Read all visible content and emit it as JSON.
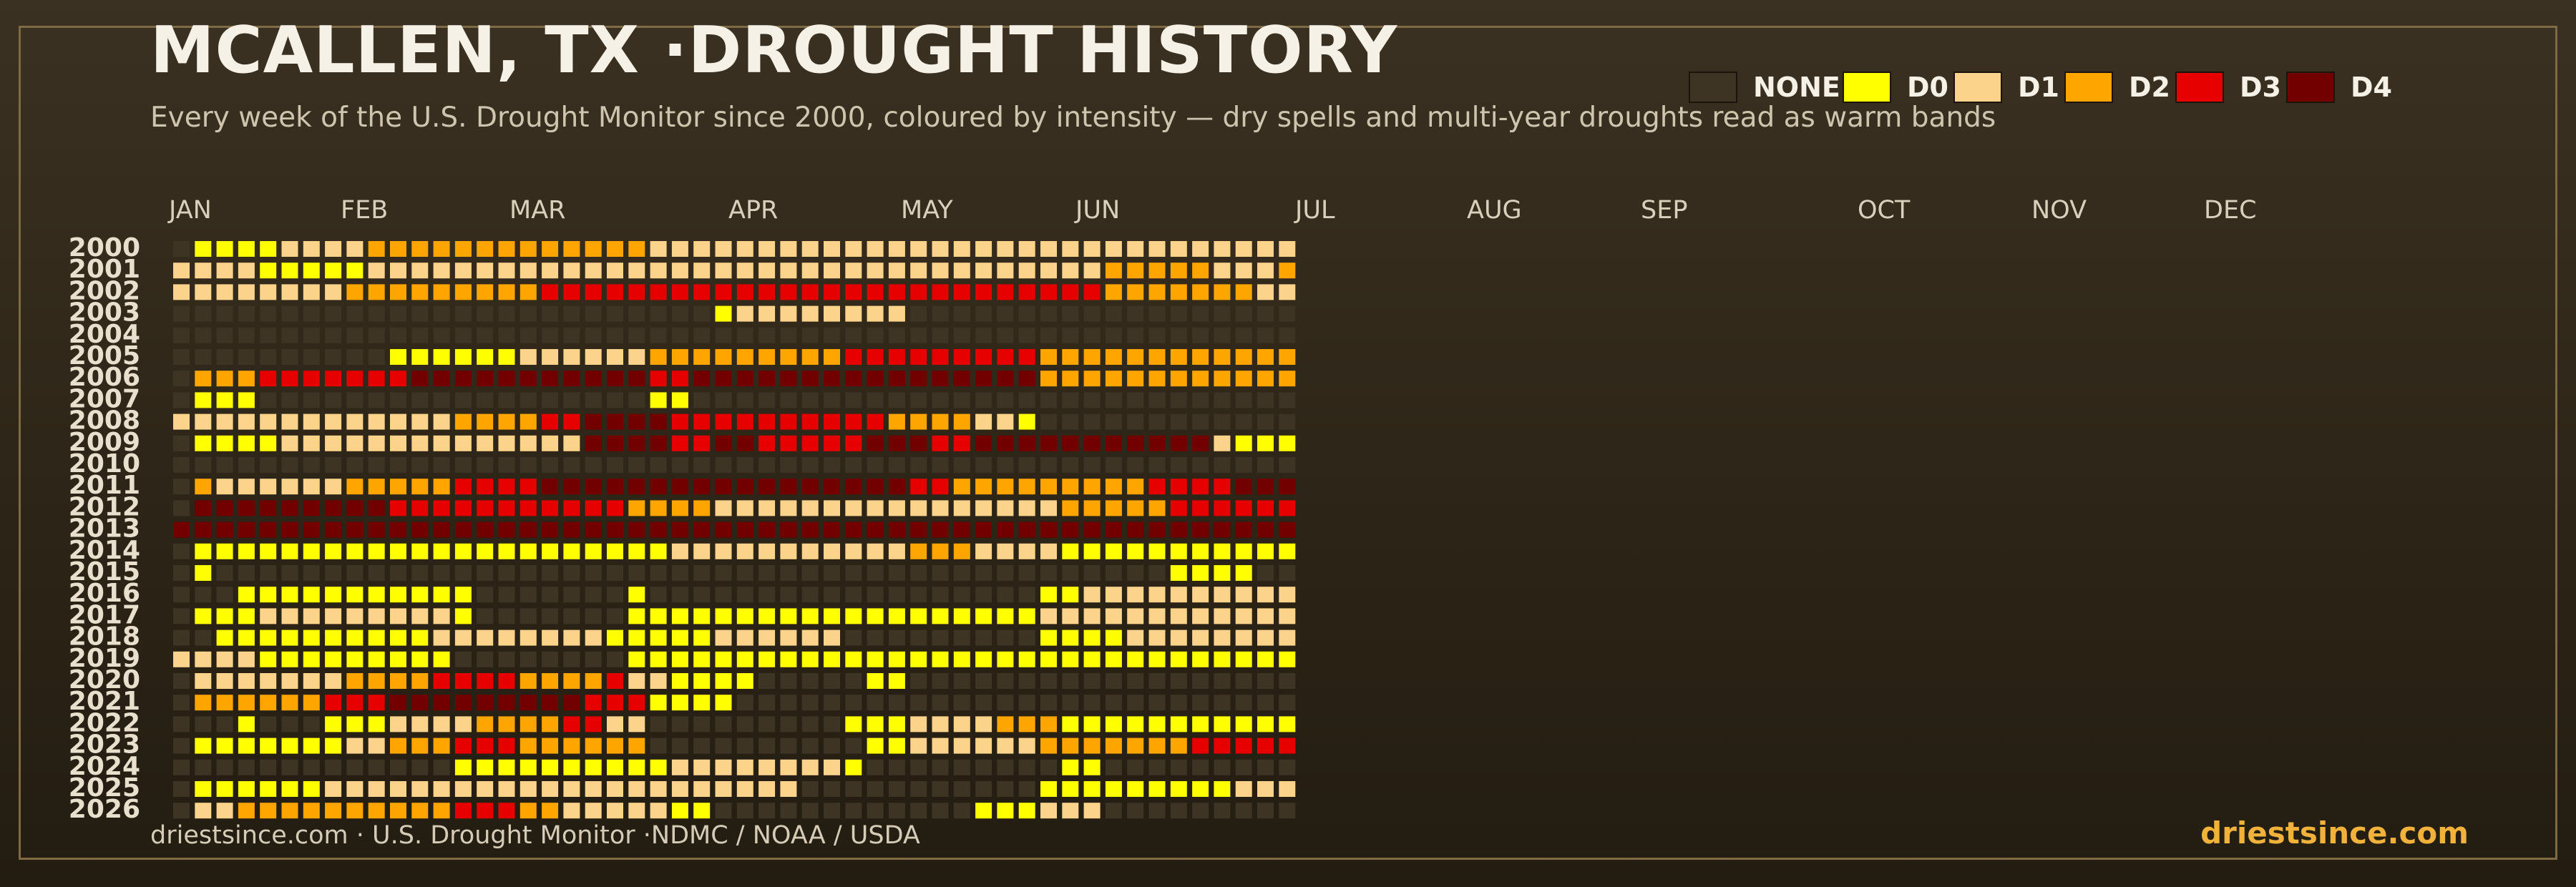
{
  "title": "MCALLEN, TX ·DROUGHT HISTORY",
  "subtitle": "Every week of the U.S. Drought Monitor since 2000, coloured by intensity — dry spells and multi-year droughts read as warm bands",
  "footer_left": "driestsince.com  · U.S. Drought Monitor ·NDMC / NOAA / USDA",
  "footer_right": "driestsince.com",
  "legend": [
    {
      "label": "NONE",
      "color": "#3e3424"
    },
    {
      "label": "D0",
      "color": "#ffff00"
    },
    {
      "label": "D1",
      "color": "#fcd38a"
    },
    {
      "label": "D2",
      "color": "#ffa500"
    },
    {
      "label": "D3",
      "color": "#e60000"
    },
    {
      "label": "D4",
      "color": "#730000"
    }
  ],
  "chart_data": {
    "type": "heatmap",
    "x_labels": [
      "JAN",
      "FEB",
      "MAR",
      "APR",
      "MAY",
      "JUN",
      "JUL",
      "AUG",
      "SEP",
      "OCT",
      "NOV",
      "DEC"
    ],
    "y_labels": [
      "2000",
      "2001",
      "2002",
      "2003",
      "2004",
      "2005",
      "2006",
      "2007",
      "2008",
      "2009",
      "2010",
      "2011",
      "2012",
      "2013",
      "2014",
      "2015",
      "2016",
      "2017",
      "2018",
      "2019",
      "2020",
      "2021",
      "2022",
      "2023",
      "2024",
      "2025",
      "2026"
    ],
    "scale": [
      "NONE",
      "D0",
      "D1",
      "D2",
      "D3",
      "D4"
    ],
    "unit": "weekly drought intensity (0=NONE .. 5=D4)",
    "rows": [
      {
        "year": "2000",
        "weeks": "011112222333333333333322222222222222222222222222222222222222222222222222222222222222"
      },
      {
        "year": "2001",
        "weeks": "2222111112222222222222222222222222222222222333332223333333222222222222"
      },
      {
        "year": "2002",
        "weeks": "2222222233333333344444444444444444444444444333333322222222222222222222"
      },
      {
        "year": "2003",
        "weeks": "0000000000000000000000000122222222000000000000000000000000000000000000"
      },
      {
        "year": "2004",
        "weeks": "0000000000000000000000000000000000000000000000000000000000000000000000"
      },
      {
        "year": "2005",
        "weeks": "0000000000111111222222333333333444444444333333333333333333333333333333"
      },
      {
        "year": "2006",
        "weeks": "0333444444455555555555445555555555555555333333333333333333333222222220"
      },
      {
        "year": "2007",
        "weeks": "0111000000000000000000110000000000000000000000000000000000000001111110"
      },
      {
        "year": "2008",
        "weeks": "2222222222222333344555544444444443333221000000000000000000000001111111"
      },
      {
        "year": "2009",
        "weeks": "0111122222222222222555544554444455544555555555552111111111111111111110"
      },
      {
        "year": "2010",
        "weeks": "0000000000000000000000000000000000000000000000000000000000000111111223"
      },
      {
        "year": "2011",
        "weeks": "0322222233333444455555555555555555443333333334444555555555555555555555"
      },
      {
        "year": "2012",
        "weeks": "0555555555444444444443333222222222222222233333444444455555555555555555"
      },
      {
        "year": "2013",
        "weeks": "5555555555555555555555555555555555555555555555555555444444444333333332"
      },
      {
        "year": "2014",
        "weeks": "0111111111111111111111122222222222333222211111111111111111111111111111"
      },
      {
        "year": "2015",
        "weeks": "0100000000000000000000000000000000000000000000111100000000000000000000"
      },
      {
        "year": "2016",
        "weeks": "0001111111111100000001000000000000000000112222222222222222222222221111"
      },
      {
        "year": "2017",
        "weeks": "0111222222222100000001111111111111111111222222222222222222222111111000"
      },
      {
        "year": "2018",
        "weeks": "0011111111112222222211111222222000000000111122222222222222222111111110"
      },
      {
        "year": "2019",
        "weeks": "2222111111111000000001111111111111111111111111111111111111111222222222"
      },
      {
        "year": "2020",
        "weeks": "0222222233334444333342211110000011000000000000000000000001112222223333"
      },
      {
        "year": "2021",
        "weeks": "0333333444555555555444111100000000000000000000000000000000000000000000"
      },
      {
        "year": "2022",
        "weeks": "0001000111222233334422000000000111222233311111111111111111111111111111"
      },
      {
        "year": "2023",
        "weeks": "0111111122333444333333000000000011222222333333344444442222222222111110"
      },
      {
        "year": "2024",
        "weeks": "0000000000000111111111122222222100000000011000000000000111111111111111"
      },
      {
        "year": "2025",
        "weeks": "0111111222222222222222222222200000000000111111111222222222222111111111"
      },
      {
        "year": "2026",
        "weeks": "0223333333333444332222211000000000000111222000000000000000000000000000"
      }
    ]
  }
}
